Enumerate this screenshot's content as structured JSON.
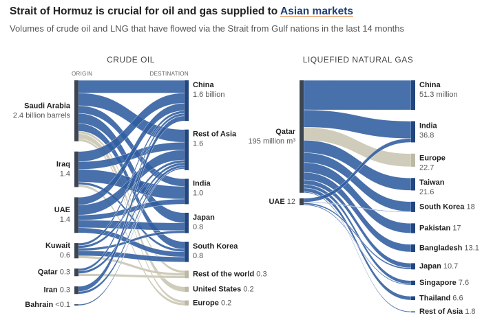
{
  "title": "Strait of Hormuz is crucial for oil and gas supplied to",
  "title_highlight": "Asian markets",
  "subtitle": "Volumes of crude oil and LNG that have flowed via the Strait from Gulf nations in the last 14 months",
  "chart_data": [
    {
      "type": "sankey",
      "title": "CRUDE OIL",
      "source_heading": "ORIGIN",
      "target_heading": "DESTINATION",
      "node_color": "#3d4452",
      "sources": [
        {
          "name": "Saudi Arabia",
          "value": 2.4,
          "value_label": "2.4 billion barrels"
        },
        {
          "name": "Iraq",
          "value": 1.4
        },
        {
          "name": "UAE",
          "value": 1.4
        },
        {
          "name": "Kuwait",
          "value": 0.6
        },
        {
          "name": "Qatar",
          "value": 0.3
        },
        {
          "name": "Iran",
          "value": 0.3
        },
        {
          "name": "Bahrain",
          "value": 0.05,
          "value_label": "<0.1"
        }
      ],
      "targets": [
        {
          "name": "China",
          "value": 1.6,
          "value_label": "1.6 billion",
          "color": "#2f5c9f"
        },
        {
          "name": "Rest of Asia",
          "value": 1.6,
          "color": "#2f5c9f"
        },
        {
          "name": "India",
          "value": 1.0,
          "value_label": "1.0",
          "color": "#2f5c9f"
        },
        {
          "name": "Japan",
          "value": 0.8,
          "color": "#2f5c9f"
        },
        {
          "name": "South Korea",
          "value": 0.8,
          "color": "#2f5c9f"
        },
        {
          "name": "Rest of the world",
          "value": 0.3,
          "color": "#c9c5b2"
        },
        {
          "name": "United States",
          "value": 0.2,
          "color": "#c9c5b2"
        },
        {
          "name": "Europe",
          "value": 0.2,
          "color": "#c9c5b2"
        }
      ],
      "flows": [
        [
          0.5,
          0.5,
          0.3,
          0.4,
          0.3,
          0.1,
          0.2,
          0.1
        ],
        [
          0.4,
          0.3,
          0.5,
          0,
          0.1,
          0,
          0,
          0.1
        ],
        [
          0.3,
          0.4,
          0.2,
          0.3,
          0.2,
          0,
          0,
          0
        ],
        [
          0.1,
          0.1,
          0,
          0.1,
          0.2,
          0.1,
          0,
          0
        ],
        [
          0.1,
          0.1,
          0,
          0,
          0,
          0.1,
          0,
          0
        ],
        [
          0.2,
          0.1,
          0,
          0,
          0,
          0,
          0,
          0
        ],
        [
          0,
          0.05,
          0,
          0,
          0,
          0,
          0,
          0
        ]
      ]
    },
    {
      "type": "sankey",
      "title": "LIQUEFIED NATURAL GAS",
      "node_color": "#3d4452",
      "sources": [
        {
          "name": "Qatar",
          "value": 195,
          "value_label": "195 million m³"
        },
        {
          "name": "UAE",
          "value": 12
        }
      ],
      "targets": [
        {
          "name": "China",
          "value": 51.3,
          "value_label": "51.3 million",
          "color": "#2f5c9f"
        },
        {
          "name": "India",
          "value": 36.8,
          "color": "#2f5c9f"
        },
        {
          "name": "Europe",
          "value": 22.7,
          "color": "#c9c5b2"
        },
        {
          "name": "Taiwan",
          "value": 21.6,
          "color": "#2f5c9f"
        },
        {
          "name": "South Korea",
          "value": 18,
          "color": "#2f5c9f"
        },
        {
          "name": "Pakistan",
          "value": 17,
          "color": "#2f5c9f"
        },
        {
          "name": "Bangladesh",
          "value": 13.1,
          "color": "#2f5c9f"
        },
        {
          "name": "Japan",
          "value": 10.7,
          "color": "#2f5c9f"
        },
        {
          "name": "Singapore",
          "value": 7.6,
          "color": "#2f5c9f"
        },
        {
          "name": "Thailand",
          "value": 6.6,
          "color": "#2f5c9f"
        },
        {
          "name": "Rest of Asia",
          "value": 1.8,
          "color": "#2f5c9f"
        }
      ],
      "flows": [
        [
          51.3,
          30,
          22.7,
          21.6,
          17,
          17,
          13.1,
          8,
          6,
          6.6,
          1.7
        ],
        [
          0,
          6.8,
          0,
          0,
          1,
          0,
          0,
          2.6,
          1.6,
          0,
          0
        ]
      ]
    }
  ]
}
